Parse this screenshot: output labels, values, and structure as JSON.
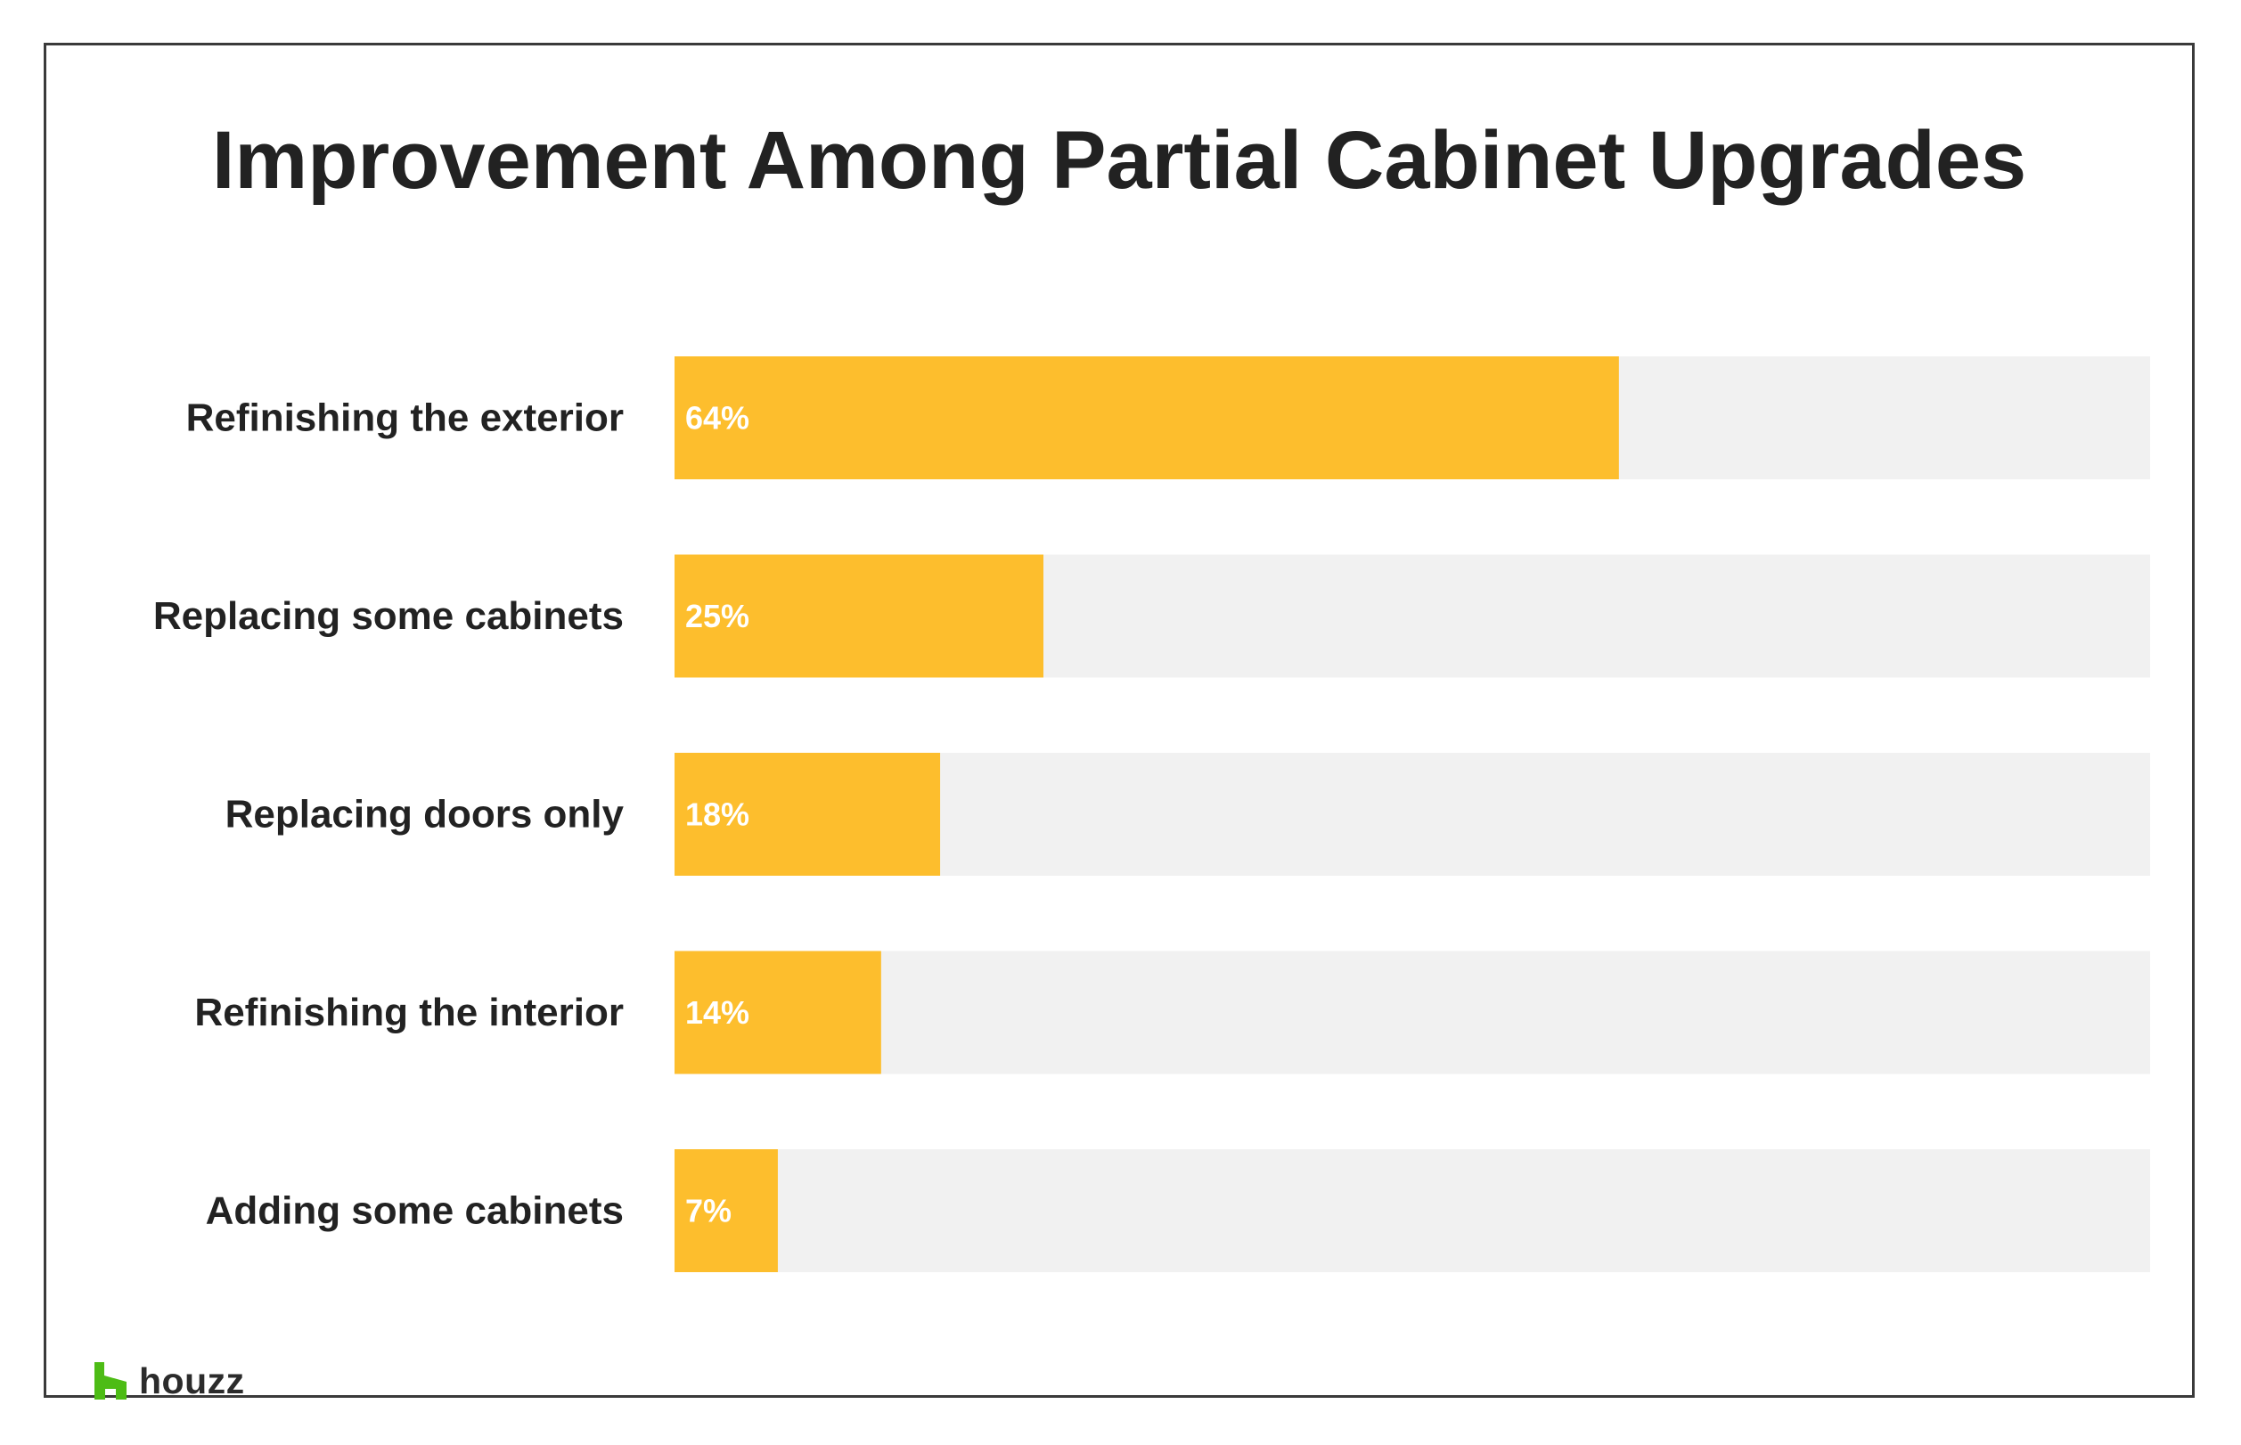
{
  "chart_data": {
    "type": "bar",
    "orientation": "horizontal",
    "title": "Improvement Among Partial Cabinet Upgrades",
    "categories": [
      "Refinishing the exterior",
      "Replacing some cabinets",
      "Replacing doors only",
      "Refinishing the interior",
      "Adding some cabinets"
    ],
    "values": [
      64,
      25,
      18,
      14,
      7
    ],
    "value_labels": [
      "64%",
      "25%",
      "18%",
      "14%",
      "7%"
    ],
    "unit": "%",
    "xlim": [
      0,
      100
    ],
    "grid": false,
    "legend": "none",
    "xlabel": "",
    "ylabel": ""
  },
  "colors": {
    "bar": "#FDBE2D",
    "track": "#F1F1F1",
    "category_text": "#222222",
    "value_text": "#FFFFFF",
    "title_text": "#222222",
    "logo_green": "#4DBC15"
  },
  "logo": {
    "icon": "houzz-logo-icon",
    "text": "houzz"
  }
}
